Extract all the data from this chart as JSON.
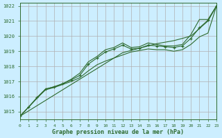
{
  "title": "Graphe pression niveau de la mer (hPa)",
  "bg_color": "#cceeff",
  "grid_color": "#b0b0b0",
  "line_color": "#2d6a2d",
  "xlim": [
    0,
    23
  ],
  "ylim": [
    1014.5,
    1022.2
  ],
  "yticks": [
    1015,
    1016,
    1017,
    1018,
    1019,
    1020,
    1021,
    1022
  ],
  "xticks": [
    0,
    1,
    2,
    3,
    4,
    5,
    6,
    7,
    8,
    9,
    10,
    11,
    12,
    13,
    14,
    15,
    16,
    17,
    18,
    19,
    20,
    21,
    22,
    23
  ],
  "series_upper": [
    1014.7,
    1015.3,
    1015.9,
    1016.5,
    1016.65,
    1016.85,
    1017.15,
    1017.55,
    1018.3,
    1018.65,
    1019.1,
    1019.25,
    1019.55,
    1019.25,
    1019.3,
    1019.55,
    1019.45,
    1019.35,
    1019.35,
    1019.45,
    1020.1,
    1021.1,
    1021.1,
    1022.0
  ],
  "series_marker": [
    1014.7,
    1015.3,
    1015.95,
    1016.5,
    1016.65,
    1016.85,
    1017.1,
    1017.4,
    1018.15,
    1018.55,
    1018.95,
    1019.15,
    1019.4,
    1019.15,
    1019.2,
    1019.4,
    1019.35,
    1019.3,
    1019.25,
    1019.35,
    1019.85,
    1020.55,
    1021.05,
    1022.0
  ],
  "series_lower": [
    1014.7,
    1015.3,
    1015.9,
    1016.45,
    1016.6,
    1016.8,
    1017.0,
    1017.25,
    1017.7,
    1018.1,
    1018.35,
    1018.55,
    1018.75,
    1018.95,
    1019.05,
    1019.15,
    1019.1,
    1019.1,
    1019.0,
    1019.1,
    1019.45,
    1019.95,
    1020.2,
    1022.0
  ],
  "series_linear": [
    1014.7,
    1015.05,
    1015.4,
    1015.75,
    1016.1,
    1016.45,
    1016.8,
    1017.15,
    1017.5,
    1017.85,
    1018.2,
    1018.55,
    1018.9,
    1019.05,
    1019.2,
    1019.35,
    1019.5,
    1019.6,
    1019.7,
    1019.85,
    1020.0,
    1020.5,
    1021.0,
    1022.0
  ]
}
